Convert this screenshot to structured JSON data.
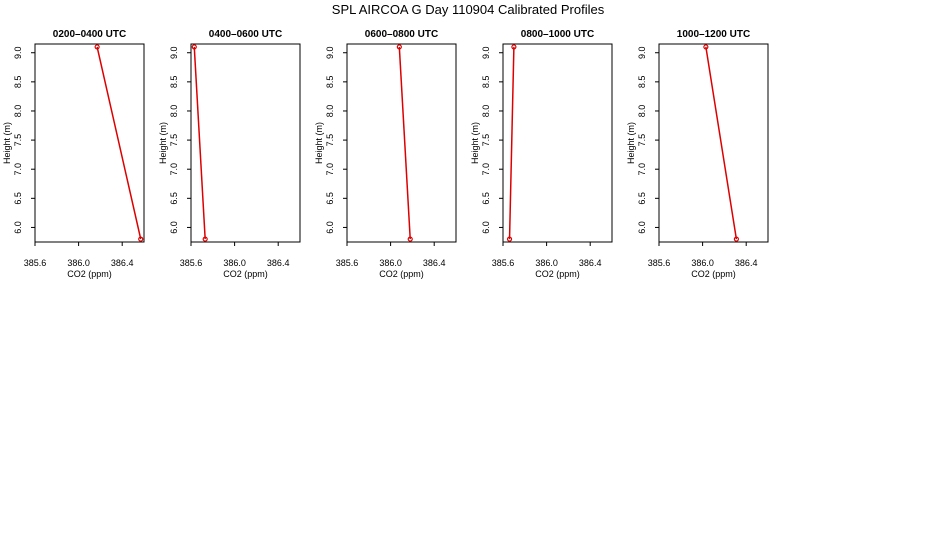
{
  "title": "SPL AIRCOA G  Day 110904  Calibrated Profiles",
  "colors": {
    "line": "#dd0000",
    "axis": "#000000",
    "background": "#ffffff"
  },
  "chart_data": [
    {
      "type": "line",
      "title": "0200–0400 UTC",
      "xlabel": "CO2 (ppm)",
      "ylabel": "Height (m)",
      "xlim": [
        385.6,
        386.6
      ],
      "ylim": [
        5.75,
        9.15
      ],
      "xticks": [
        385.6,
        386.0,
        386.4
      ],
      "xtick_labels": [
        "385.6",
        "386.0",
        "386.4"
      ],
      "yticks": [
        6.0,
        6.5,
        7.0,
        7.5,
        8.0,
        8.5,
        9.0
      ],
      "ytick_labels": [
        "6.0",
        "6.5",
        "7.0",
        "7.5",
        "8.0",
        "8.5",
        "9.0"
      ],
      "x": [
        386.17,
        386.57
      ],
      "y": [
        9.1,
        5.8
      ]
    },
    {
      "type": "line",
      "title": "0400–0600 UTC",
      "xlabel": "CO2 (ppm)",
      "ylabel": "Height (m)",
      "xlim": [
        385.6,
        386.6
      ],
      "ylim": [
        5.75,
        9.15
      ],
      "xticks": [
        385.6,
        386.0,
        386.4
      ],
      "xtick_labels": [
        "385.6",
        "386.0",
        "386.4"
      ],
      "yticks": [
        6.0,
        6.5,
        7.0,
        7.5,
        8.0,
        8.5,
        9.0
      ],
      "ytick_labels": [
        "6.0",
        "6.5",
        "7.0",
        "7.5",
        "8.0",
        "8.5",
        "9.0"
      ],
      "x": [
        385.63,
        385.73
      ],
      "y": [
        9.1,
        5.8
      ]
    },
    {
      "type": "line",
      "title": "0600–0800 UTC",
      "xlabel": "CO2 (ppm)",
      "ylabel": "Height (m)",
      "xlim": [
        385.6,
        386.6
      ],
      "ylim": [
        5.75,
        9.15
      ],
      "xticks": [
        385.6,
        386.0,
        386.4
      ],
      "xtick_labels": [
        "385.6",
        "386.0",
        "386.4"
      ],
      "yticks": [
        6.0,
        6.5,
        7.0,
        7.5,
        8.0,
        8.5,
        9.0
      ],
      "ytick_labels": [
        "6.0",
        "6.5",
        "7.0",
        "7.5",
        "8.0",
        "8.5",
        "9.0"
      ],
      "x": [
        386.08,
        386.18
      ],
      "y": [
        9.1,
        5.8
      ]
    },
    {
      "type": "line",
      "title": "0800–1000 UTC",
      "xlabel": "CO2 (ppm)",
      "ylabel": "Height (m)",
      "xlim": [
        385.6,
        386.6
      ],
      "ylim": [
        5.75,
        9.15
      ],
      "xticks": [
        385.6,
        386.0,
        386.4
      ],
      "xtick_labels": [
        "385.6",
        "386.0",
        "386.4"
      ],
      "yticks": [
        6.0,
        6.5,
        7.0,
        7.5,
        8.0,
        8.5,
        9.0
      ],
      "ytick_labels": [
        "6.0",
        "6.5",
        "7.0",
        "7.5",
        "8.0",
        "8.5",
        "9.0"
      ],
      "x": [
        385.7,
        385.66
      ],
      "y": [
        9.1,
        5.8
      ]
    },
    {
      "type": "line",
      "title": "1000–1200 UTC",
      "xlabel": "CO2 (ppm)",
      "ylabel": "Height (m)",
      "xlim": [
        385.6,
        386.6
      ],
      "ylim": [
        5.75,
        9.15
      ],
      "xticks": [
        385.6,
        386.0,
        386.4
      ],
      "xtick_labels": [
        "385.6",
        "386.0",
        "386.4"
      ],
      "yticks": [
        6.0,
        6.5,
        7.0,
        7.5,
        8.0,
        8.5,
        9.0
      ],
      "ytick_labels": [
        "6.0",
        "6.5",
        "7.0",
        "7.5",
        "8.0",
        "8.5",
        "9.0"
      ],
      "x": [
        386.03,
        386.31
      ],
      "y": [
        9.1,
        5.8
      ]
    }
  ]
}
